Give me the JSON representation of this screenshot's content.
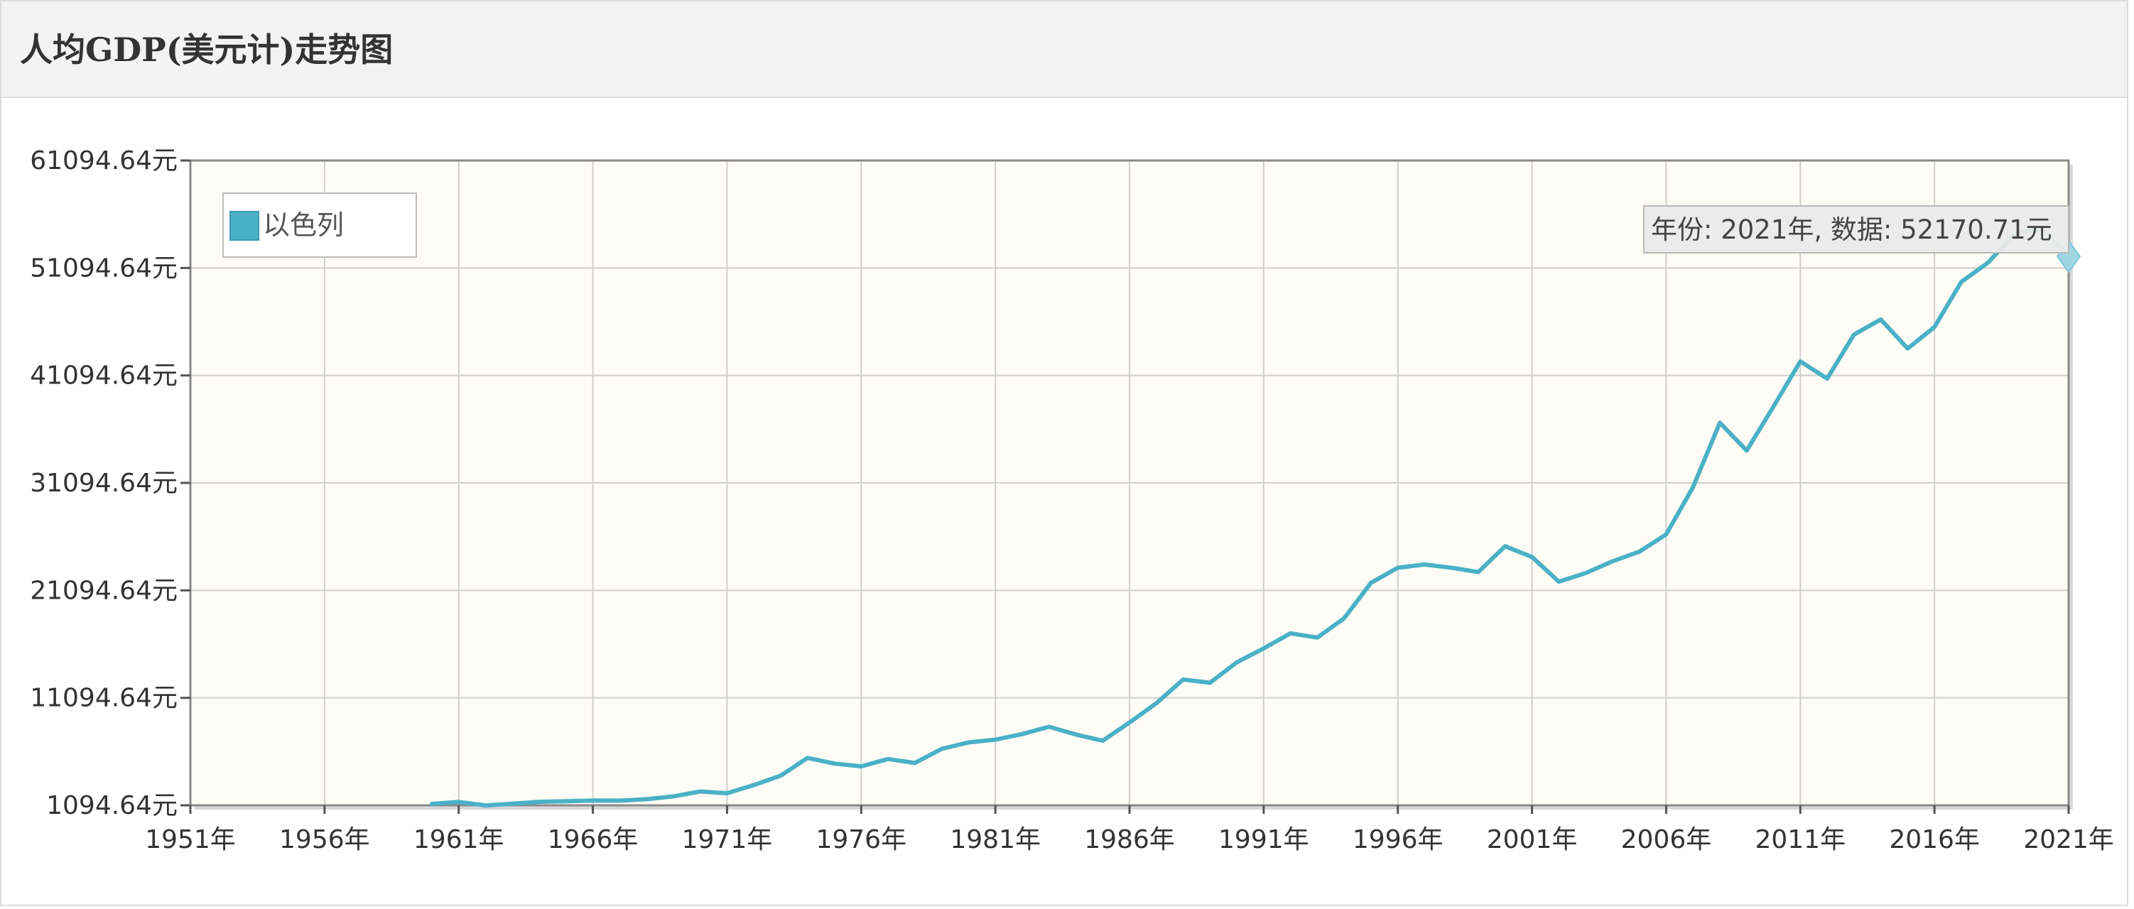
{
  "panel": {
    "title": "人均GDP(美元计)走势图"
  },
  "chart_data": {
    "type": "line",
    "x_unit": "年",
    "y_unit": "元",
    "xlim": [
      1951,
      2021
    ],
    "ylim": [
      1094.64,
      61094.64
    ],
    "x_ticks": [
      1951,
      1956,
      1961,
      1966,
      1971,
      1976,
      1981,
      1986,
      1991,
      1996,
      2001,
      2006,
      2011,
      2016,
      2021
    ],
    "x_tick_labels": [
      "1951年",
      "1956年",
      "1961年",
      "1966年",
      "1971年",
      "1976年",
      "1981年",
      "1986年",
      "1991年",
      "1996年",
      "2001年",
      "2006年",
      "2011年",
      "2016年",
      "2021年"
    ],
    "y_ticks": [
      1094.64,
      11094.64,
      21094.64,
      31094.64,
      41094.64,
      51094.64,
      61094.64
    ],
    "y_tick_labels": [
      "1094.64元",
      "11094.64元",
      "21094.64元",
      "31094.64元",
      "41094.64元",
      "51094.64元",
      "61094.64元"
    ],
    "grid": true,
    "legend_position": "top-left",
    "colors": {
      "line": "#4ab1c6",
      "plot_background": "#fefcf6",
      "grid": "#cfcfcf",
      "frame": "#8a8a8a"
    },
    "series": [
      {
        "name": "以色列",
        "x": [
          1960,
          1961,
          1962,
          1963,
          1964,
          1965,
          1966,
          1967,
          1968,
          1969,
          1970,
          1971,
          1972,
          1973,
          1974,
          1975,
          1976,
          1977,
          1978,
          1979,
          1980,
          1981,
          1982,
          1983,
          1984,
          1985,
          1986,
          1987,
          1988,
          1989,
          1990,
          1991,
          1992,
          1993,
          1994,
          1995,
          1996,
          1997,
          1998,
          1999,
          2000,
          2001,
          2002,
          2003,
          2004,
          2005,
          2006,
          2007,
          2008,
          2009,
          2010,
          2011,
          2012,
          2013,
          2014,
          2015,
          2016,
          2017,
          2018,
          2019,
          2020,
          2021
        ],
        "y": [
          1230,
          1410,
          1080,
          1250,
          1420,
          1480,
          1540,
          1530,
          1660,
          1930,
          2380,
          2220,
          2980,
          3860,
          5500,
          4980,
          4720,
          5400,
          5040,
          6350,
          6950,
          7200,
          7720,
          8400,
          7680,
          7100,
          8800,
          10600,
          12800,
          12500,
          14400,
          15700,
          17100,
          16700,
          18500,
          21800,
          23200,
          23500,
          23200,
          22800,
          25200,
          24200,
          21900,
          22700,
          23800,
          24700,
          26300,
          30700,
          36700,
          34100,
          38200,
          42400,
          40800,
          44900,
          46300,
          43600,
          45600,
          49800,
          51600,
          54300,
          54700,
          52170.71
        ]
      }
    ],
    "tooltip": {
      "text": "年份: 2021年, 数据: 52170.71元",
      "x": 2021,
      "y": 52170.71
    }
  }
}
